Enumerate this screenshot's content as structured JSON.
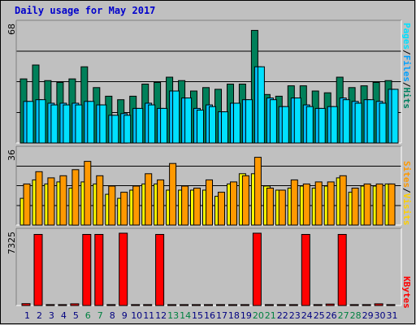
{
  "title": "Daily usage for May 2017",
  "colors": {
    "hits": "#00805a",
    "files": "#00c0ff",
    "pages": "#00e0ff",
    "visits": "#ffff00",
    "sites": "#ff9900",
    "kbytes": "#ff0000",
    "title": "#0000cc",
    "weekend_label": "#008040",
    "weekday_label": "#000080",
    "background": "#c0c0c0"
  },
  "legend": {
    "top": [
      {
        "text": "Pages",
        "color": "#00e0ff"
      },
      {
        "text": "/",
        "color": "#000000"
      },
      {
        "text": "Files",
        "color": "#00a0ff"
      },
      {
        "text": "/",
        "color": "#000000"
      },
      {
        "text": "Hits",
        "color": "#008060"
      }
    ],
    "middle": [
      {
        "text": "Sites",
        "color": "#ff9900"
      },
      {
        "text": "/",
        "color": "#000000"
      },
      {
        "text": "Visits",
        "color": "#ffd000"
      }
    ],
    "bottom": [
      {
        "text": "KBytes",
        "color": "#ff0000"
      }
    ]
  },
  "chart_data": [
    {
      "type": "bar",
      "panel": "hits-files-pages",
      "y_max_label": "68",
      "ylim": [
        0,
        68
      ],
      "grid": true,
      "categories": [
        "1",
        "2",
        "3",
        "4",
        "5",
        "6",
        "7",
        "8",
        "9",
        "10",
        "11",
        "12",
        "13",
        "14",
        "15",
        "16",
        "17",
        "18",
        "19",
        "20",
        "21",
        "22",
        "23",
        "24",
        "25",
        "26",
        "27",
        "28",
        "29",
        "30",
        "31"
      ],
      "series": [
        {
          "name": "Hits",
          "values": [
            37,
            45,
            36,
            35,
            37,
            44,
            32,
            27,
            25,
            27,
            34,
            35,
            38,
            36,
            30,
            32,
            31,
            34,
            34,
            65,
            28,
            27,
            33,
            33,
            30,
            29,
            38,
            32,
            33,
            35,
            36
          ]
        },
        {
          "name": "Files",
          "values": [
            24,
            25,
            23,
            23,
            23,
            24,
            22,
            16,
            17,
            20,
            23,
            20,
            30,
            26,
            20,
            22,
            18,
            23,
            25,
            44,
            26,
            21,
            26,
            22,
            20,
            21,
            26,
            24,
            25,
            24,
            31
          ]
        },
        {
          "name": "Pages",
          "values": [
            24,
            25,
            22,
            22,
            22,
            24,
            22,
            16,
            16,
            20,
            22,
            20,
            30,
            26,
            19,
            21,
            18,
            23,
            25,
            44,
            25,
            21,
            26,
            21,
            20,
            21,
            25,
            23,
            25,
            23,
            31
          ]
        }
      ]
    },
    {
      "type": "bar",
      "panel": "visits-sites",
      "y_max_label": "36",
      "ylim": [
        0,
        36
      ],
      "grid": true,
      "categories": [
        "1",
        "2",
        "3",
        "4",
        "5",
        "6",
        "7",
        "8",
        "9",
        "10",
        "11",
        "12",
        "13",
        "14",
        "15",
        "16",
        "17",
        "18",
        "19",
        "20",
        "21",
        "22",
        "23",
        "24",
        "25",
        "26",
        "27",
        "28",
        "29",
        "30",
        "31"
      ],
      "series": [
        {
          "name": "Visits",
          "values": [
            13,
            22,
            20,
            21,
            18,
            21,
            20,
            15,
            13,
            17,
            20,
            20,
            17,
            17,
            17,
            17,
            14,
            20,
            25,
            25,
            19,
            17,
            18,
            19,
            18,
            19,
            23,
            16,
            19,
            19,
            20
          ]
        },
        {
          "name": "Sites",
          "values": [
            20,
            26,
            23,
            24,
            27,
            31,
            24,
            19,
            16,
            19,
            25,
            22,
            30,
            19,
            18,
            22,
            16,
            21,
            24,
            33,
            18,
            17,
            22,
            20,
            21,
            21,
            24,
            18,
            20,
            20,
            20
          ]
        }
      ]
    },
    {
      "type": "bar",
      "panel": "kbytes",
      "y_max_label": "7325",
      "ylim": [
        0,
        7325
      ],
      "grid": false,
      "categories": [
        "1",
        "2",
        "3",
        "4",
        "5",
        "6",
        "7",
        "8",
        "9",
        "10",
        "11",
        "12",
        "13",
        "14",
        "15",
        "16",
        "17",
        "18",
        "19",
        "20",
        "21",
        "22",
        "23",
        "24",
        "25",
        "26",
        "27",
        "28",
        "29",
        "30",
        "31"
      ],
      "series": [
        {
          "name": "KBytes",
          "values": [
            190,
            7200,
            90,
            90,
            170,
            7200,
            7200,
            90,
            7325,
            90,
            90,
            7200,
            90,
            90,
            90,
            90,
            90,
            90,
            90,
            7325,
            90,
            90,
            90,
            7200,
            90,
            150,
            7200,
            90,
            90,
            170,
            90
          ]
        }
      ]
    }
  ],
  "x_axis": {
    "labels": [
      "1",
      "2",
      "3",
      "4",
      "5",
      "6",
      "7",
      "8",
      "9",
      "10",
      "11",
      "12",
      "13",
      "14",
      "15",
      "16",
      "17",
      "18",
      "19",
      "20",
      "21",
      "22",
      "23",
      "24",
      "25",
      "26",
      "27",
      "28",
      "29",
      "30",
      "31"
    ],
    "weekend": [
      6,
      7,
      13,
      14,
      20,
      21,
      27,
      28
    ]
  }
}
